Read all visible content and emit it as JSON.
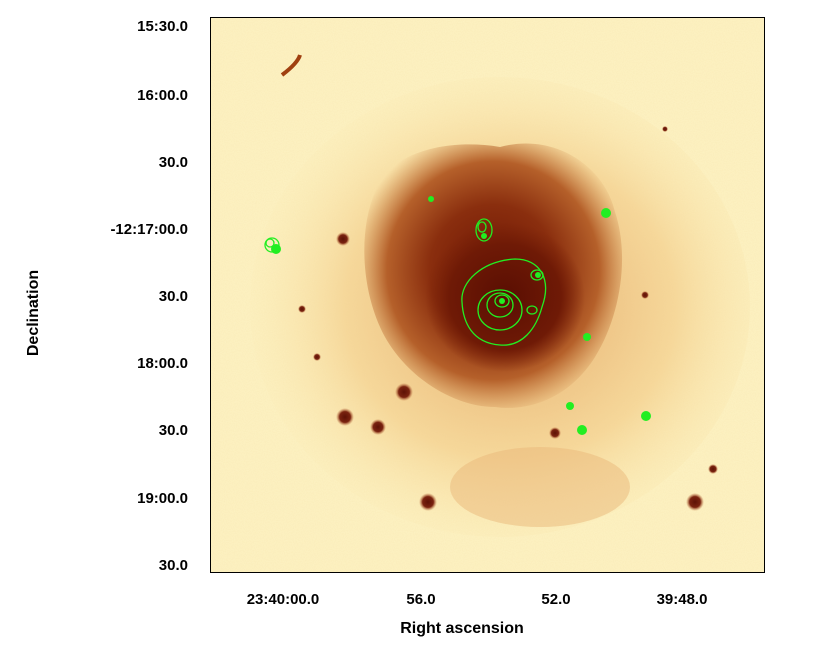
{
  "axes": {
    "xlabel": "Right ascension",
    "ylabel": "Declination",
    "x_ticks": [
      "23:40:00.0",
      "56.0",
      "52.0",
      "39:48.0"
    ],
    "y_ticks": [
      "15:30.0",
      "16:00.0",
      "30.0",
      "-12:17:00.0",
      "30.0",
      "18:00.0",
      "30.0",
      "19:00.0",
      "30.0"
    ]
  },
  "colors": {
    "background": "#fdf5c8",
    "nebula_core": "#7a1e08",
    "contour": "#22ee22"
  }
}
